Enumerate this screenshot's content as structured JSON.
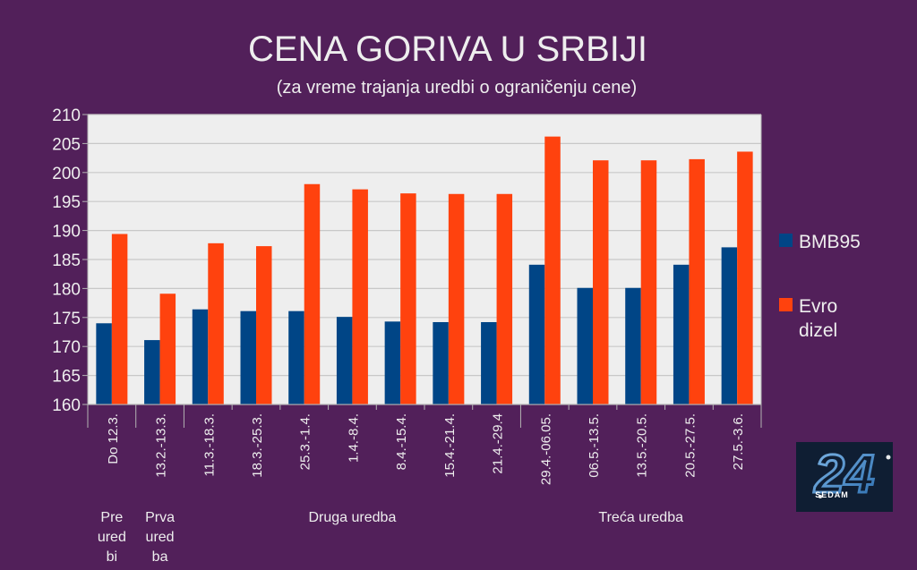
{
  "chart_data": {
    "type": "bar",
    "title": "CENA GORIVA U SRBIJI",
    "subtitle": "(za vreme trajanja uredbi o ograničenju cene)",
    "xlabel": "",
    "ylabel": "",
    "ylim": [
      160,
      210
    ],
    "yticks": [
      160,
      165,
      170,
      175,
      180,
      185,
      190,
      195,
      200,
      205,
      210
    ],
    "grid": true,
    "legend_position": "right",
    "categories": [
      "Do 12.3.",
      "13.2.-13.3.",
      "11.3.-18.3.",
      "18.3.-25.3.",
      "25.3.-1.4.",
      "1.4.-8.4.",
      "8.4.-15.4.",
      "15.4.-21.4.",
      "21.4.-29.4",
      "29.4.-06.05.",
      "06.5.-13.5.",
      "13.5.-20.5.",
      "20.5.-27.5.",
      "27.5.-3.6."
    ],
    "groups": [
      {
        "lines": [
          "Pre",
          "ured",
          "bi"
        ],
        "span": [
          0,
          0
        ]
      },
      {
        "lines": [
          "Prva",
          "ured",
          "ba"
        ],
        "span": [
          1,
          1
        ]
      },
      {
        "lines": [
          "Druga uredba"
        ],
        "span": [
          2,
          8
        ]
      },
      {
        "lines": [
          "Treća uredba"
        ],
        "span": [
          9,
          13
        ]
      }
    ],
    "series": [
      {
        "name": "BMB95",
        "color": "#004586",
        "values": [
          174.0,
          171.1,
          176.4,
          176.1,
          176.1,
          175.1,
          174.3,
          174.2,
          174.2,
          184.1,
          180.1,
          180.1,
          184.1,
          187.1
        ]
      },
      {
        "name": "Evro dizel",
        "legend_lines": [
          "Evro",
          "dizel"
        ],
        "color": "#ff420e",
        "values": [
          189.4,
          179.1,
          187.8,
          187.3,
          198.0,
          197.1,
          196.4,
          196.3,
          196.3,
          206.2,
          202.1,
          202.1,
          202.3,
          203.6
        ]
      }
    ]
  },
  "logo": {
    "text_number": "24",
    "text_word": "SEDAM"
  },
  "colors": {
    "background": "#52205a",
    "plot_background": "#eeeeee",
    "text": "#eeeeee",
    "grid": "#c8c8c8"
  }
}
